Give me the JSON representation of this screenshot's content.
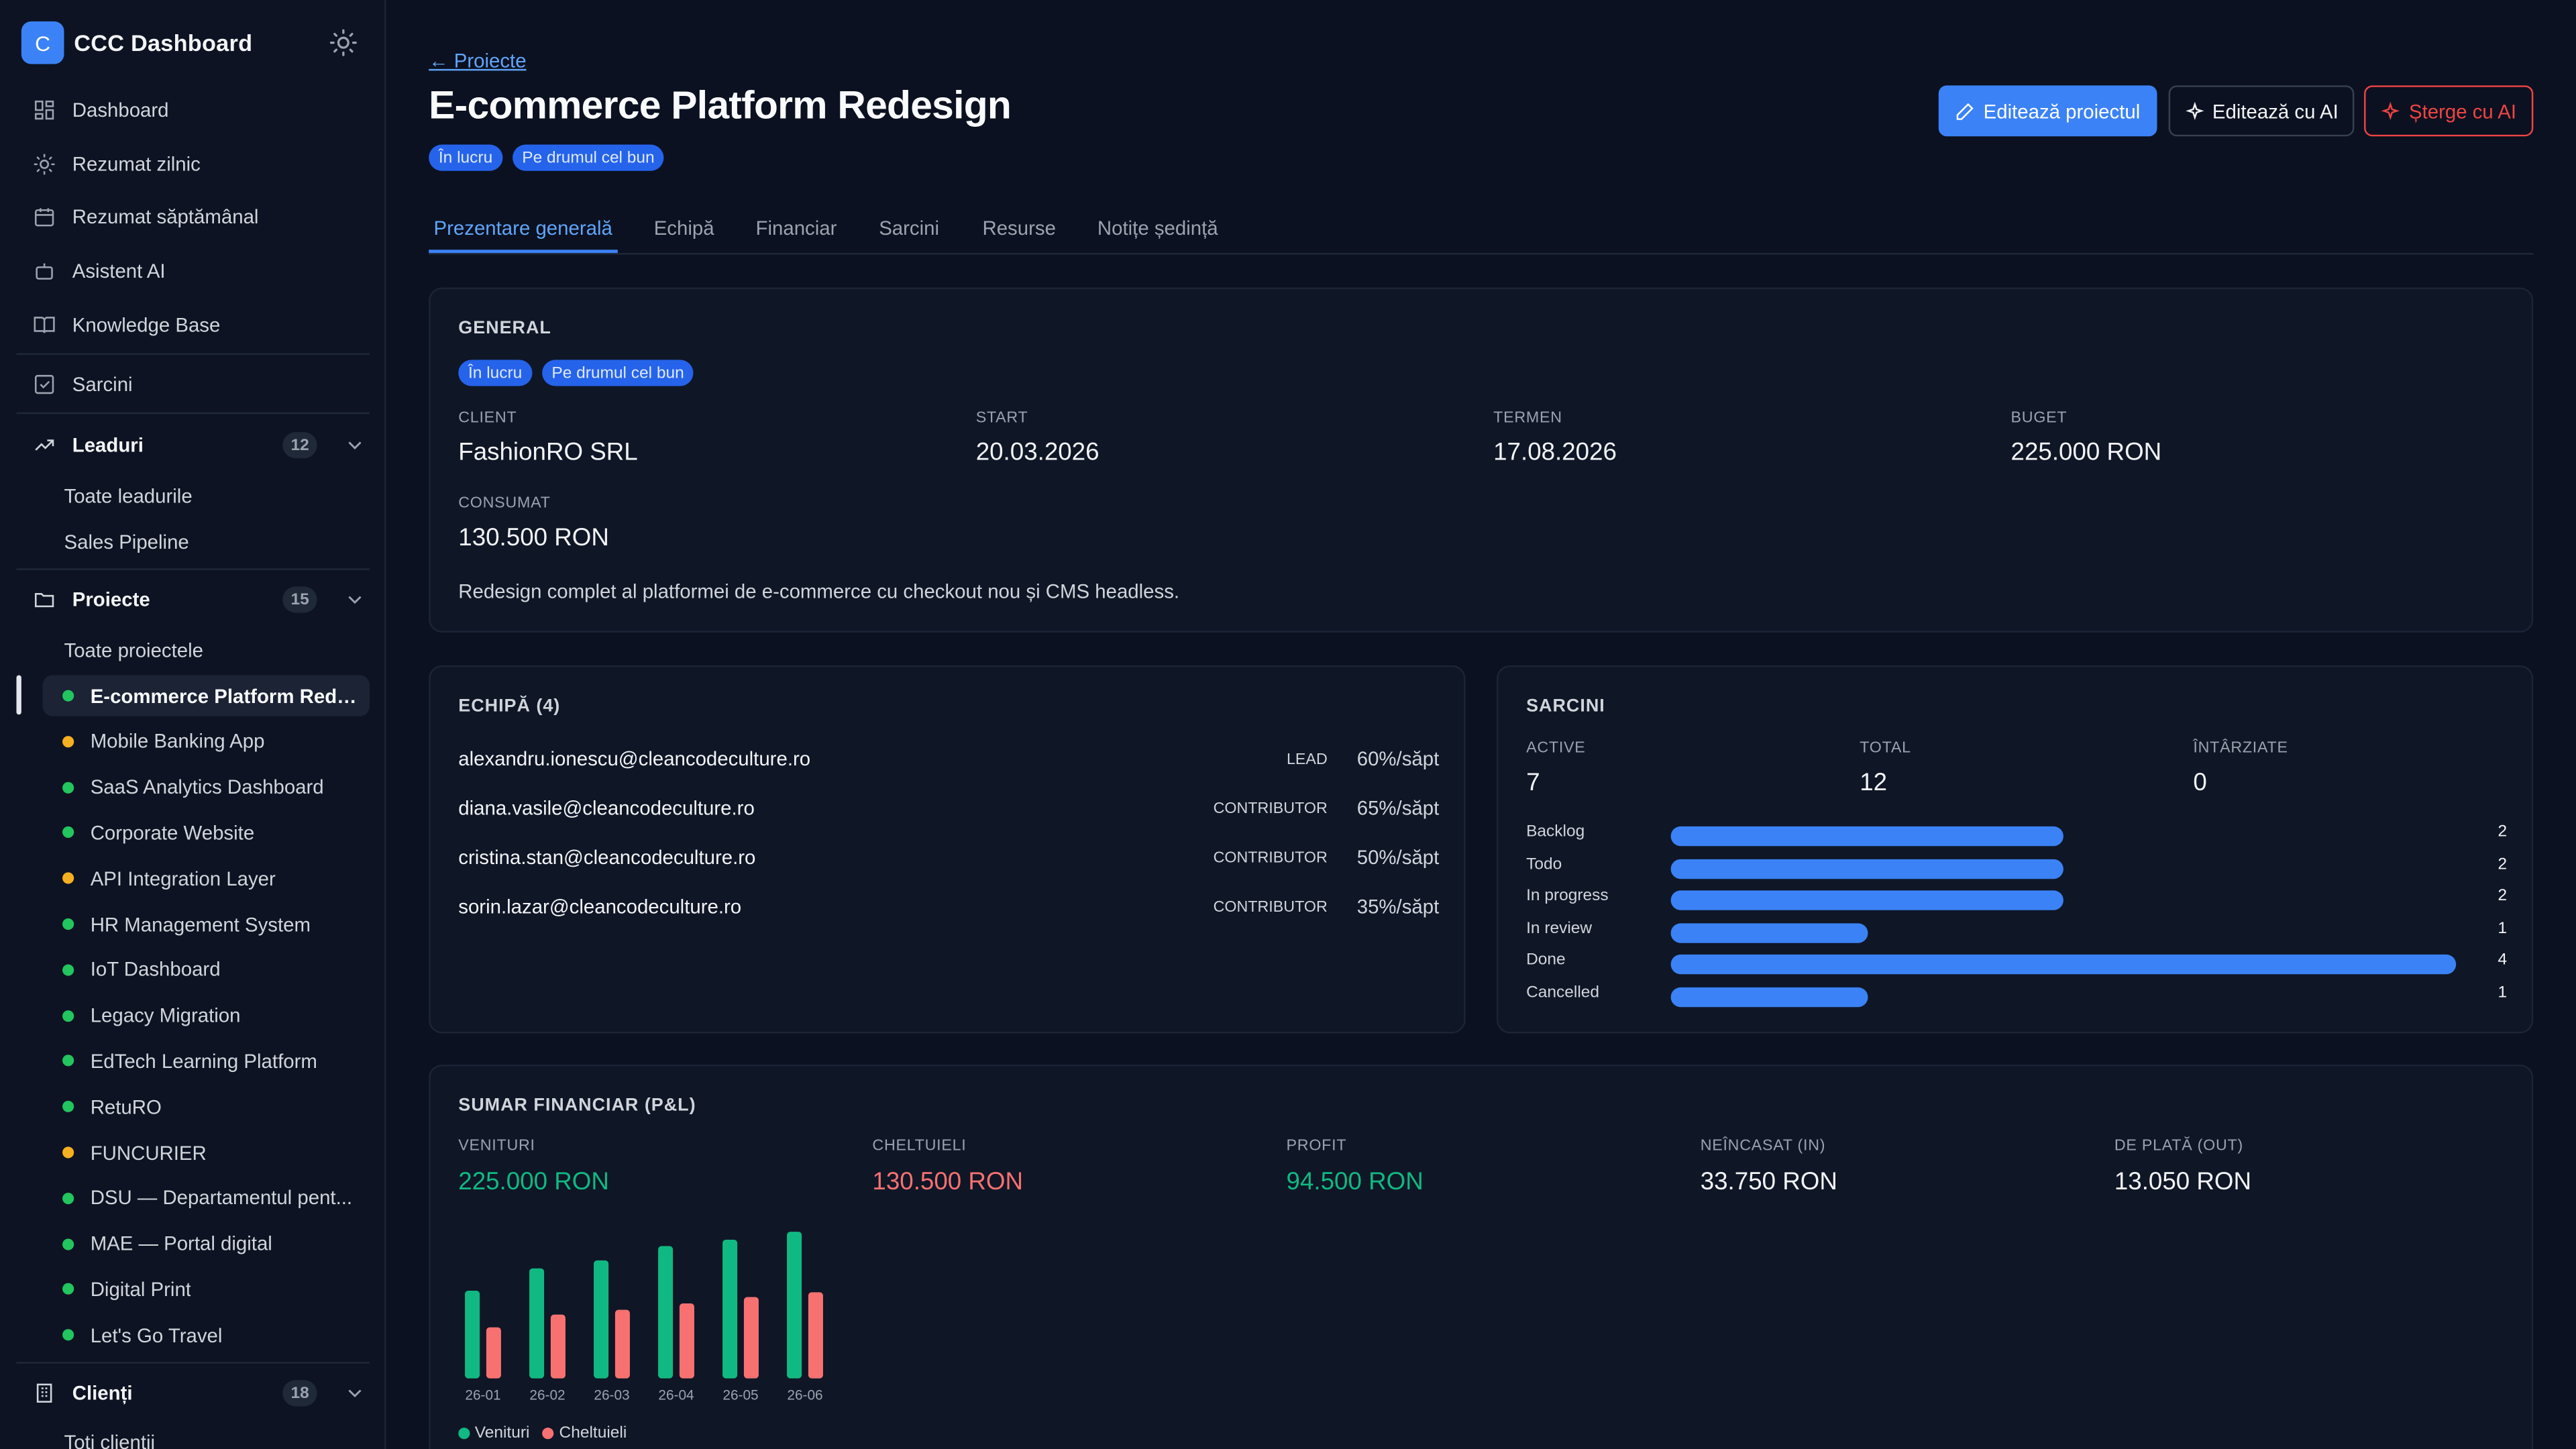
{
  "app": {
    "name": "CCC Dashboard",
    "logo_letter": "C"
  },
  "sidebar": {
    "main_items": [
      {
        "label": "Dashboard",
        "icon": "grid-icon"
      },
      {
        "label": "Rezumat zilnic",
        "icon": "sun-icon"
      },
      {
        "label": "Rezumat săptămânal",
        "icon": "calendar-icon"
      },
      {
        "label": "Asistent AI",
        "icon": "bot-icon"
      },
      {
        "label": "Knowledge Base",
        "icon": "book-icon"
      }
    ],
    "tasks": {
      "label": "Sarcini",
      "icon": "check-square-icon"
    },
    "leads": {
      "label": "Leaduri",
      "count": "12",
      "items": [
        "Toate leadurile",
        "Sales Pipeline"
      ]
    },
    "projects": {
      "label": "Proiecte",
      "count": "15",
      "all_label": "Toate proiectele",
      "items": [
        {
          "label": "E-commerce Platform Rede...",
          "status": "green"
        },
        {
          "label": "Mobile Banking App",
          "status": "amber"
        },
        {
          "label": "SaaS Analytics Dashboard",
          "status": "green"
        },
        {
          "label": "Corporate Website",
          "status": "green"
        },
        {
          "label": "API Integration Layer",
          "status": "amber"
        },
        {
          "label": "HR Management System",
          "status": "green"
        },
        {
          "label": "IoT Dashboard",
          "status": "green"
        },
        {
          "label": "Legacy Migration",
          "status": "green"
        },
        {
          "label": "EdTech Learning Platform",
          "status": "green"
        },
        {
          "label": "RetuRO",
          "status": "green"
        },
        {
          "label": "FUNCURIER",
          "status": "amber"
        },
        {
          "label": "DSU — Departamentul pent...",
          "status": "green"
        },
        {
          "label": "MAE — Portal digital",
          "status": "green"
        },
        {
          "label": "Digital Print",
          "status": "green"
        },
        {
          "label": "Let's Go Travel",
          "status": "green"
        }
      ]
    },
    "clients": {
      "label": "Clienți",
      "count": "18",
      "all_label": "Toți clienții"
    }
  },
  "header": {
    "back_label": "← Proiecte",
    "title": "E-commerce Platform Redesign",
    "status_pills": [
      "În lucru",
      "Pe drumul cel bun"
    ],
    "actions": {
      "edit": "Editează proiectul",
      "edit_ai": "Editează cu AI",
      "delete_ai": "Șterge cu AI"
    }
  },
  "tabs": [
    "Prezentare generală",
    "Echipă",
    "Financiar",
    "Sarcini",
    "Resurse",
    "Notițe ședință"
  ],
  "general": {
    "title": "GENERAL",
    "pills": [
      "În lucru",
      "Pe drumul cel bun"
    ],
    "client_label": "CLIENT",
    "client": "FashionRO SRL",
    "start_label": "START",
    "start": "20.03.2026",
    "deadline_label": "TERMEN",
    "deadline": "17.08.2026",
    "budget_label": "BUGET",
    "budget": "225.000 RON",
    "consumed_label": "CONSUMAT",
    "consumed": "130.500 RON",
    "description": "Redesign complet al platformei de e-commerce cu checkout nou și CMS headless."
  },
  "team": {
    "title": "ECHIPĂ (4)",
    "members": [
      {
        "email": "alexandru.ionescu@cleancodeculture.ro",
        "role": "LEAD",
        "allocation": "60%/săpt"
      },
      {
        "email": "diana.vasile@cleancodeculture.ro",
        "role": "CONTRIBUTOR",
        "allocation": "65%/săpt"
      },
      {
        "email": "cristina.stan@cleancodeculture.ro",
        "role": "CONTRIBUTOR",
        "allocation": "50%/săpt"
      },
      {
        "email": "sorin.lazar@cleancodeculture.ro",
        "role": "CONTRIBUTOR",
        "allocation": "35%/săpt"
      }
    ]
  },
  "tasks_card": {
    "title": "SARCINI",
    "active_label": "ACTIVE",
    "active": "7",
    "total_label": "TOTAL",
    "total": "12",
    "late_label": "ÎNTÂRZIATE",
    "late": "0",
    "max": 4,
    "statuses": [
      {
        "label": "Backlog",
        "value": 2
      },
      {
        "label": "Todo",
        "value": 2
      },
      {
        "label": "In progress",
        "value": 2
      },
      {
        "label": "In review",
        "value": 1
      },
      {
        "label": "Done",
        "value": 4
      },
      {
        "label": "Cancelled",
        "value": 1
      }
    ]
  },
  "finance": {
    "title": "SUMAR FINANCIAR (P&L)",
    "metrics": [
      {
        "label": "VENITURI",
        "value": "225.000 RON",
        "color": "#10b981"
      },
      {
        "label": "CHELTUIELI",
        "value": "130.500 RON",
        "color": "#f87171"
      },
      {
        "label": "PROFIT",
        "value": "94.500 RON",
        "color": "#10b981"
      },
      {
        "label": "NEÎNCASAT (IN)",
        "value": "33.750 RON",
        "color": "#f3f4f6"
      },
      {
        "label": "DE PLATĂ (OUT)",
        "value": "13.050 RON",
        "color": "#f3f4f6"
      }
    ]
  },
  "chart_data": {
    "type": "bar",
    "categories": [
      "26-01",
      "26-02",
      "26-03",
      "26-04",
      "26-05",
      "26-06"
    ],
    "series": [
      {
        "name": "Venituri",
        "color": "#10b981",
        "values": [
          55,
          69,
          74,
          83,
          87,
          92
        ]
      },
      {
        "name": "Cheltuieli",
        "color": "#f87171",
        "values": [
          32,
          40,
          43,
          47,
          51,
          54
        ]
      }
    ],
    "ylim": [
      0,
      100
    ],
    "grid": false,
    "legend": "bottom-left"
  }
}
